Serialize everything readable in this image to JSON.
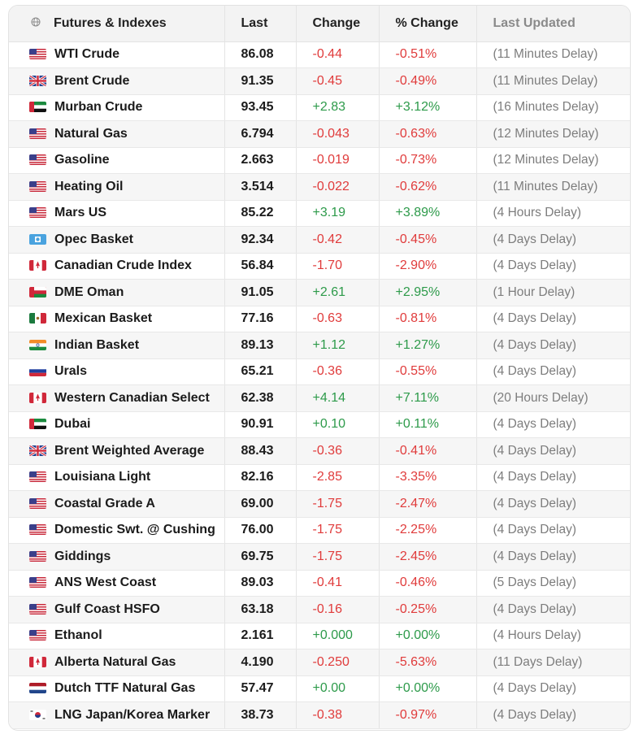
{
  "header": {
    "name": "Futures & Indexes",
    "last": "Last",
    "change": "Change",
    "pct_change": "% Change",
    "last_updated": "Last Updated"
  },
  "colors": {
    "negative": "#e03b3b",
    "positive": "#2d9a4a"
  },
  "rows": [
    {
      "name": "WTI Crude",
      "flag": "us",
      "last": "86.08",
      "change": "-0.44",
      "pct": "-0.51%",
      "updated": "(11 Minutes Delay)"
    },
    {
      "name": "Brent Crude",
      "flag": "uk",
      "last": "91.35",
      "change": "-0.45",
      "pct": "-0.49%",
      "updated": "(11 Minutes Delay)"
    },
    {
      "name": "Murban Crude",
      "flag": "ae",
      "last": "93.45",
      "change": "+2.83",
      "pct": "+3.12%",
      "updated": "(16 Minutes Delay)"
    },
    {
      "name": "Natural Gas",
      "flag": "us",
      "last": "6.794",
      "change": "-0.043",
      "pct": "-0.63%",
      "updated": "(12 Minutes Delay)"
    },
    {
      "name": "Gasoline",
      "flag": "us",
      "last": "2.663",
      "change": "-0.019",
      "pct": "-0.73%",
      "updated": "(12 Minutes Delay)"
    },
    {
      "name": "Heating Oil",
      "flag": "us",
      "last": "3.514",
      "change": "-0.022",
      "pct": "-0.62%",
      "updated": "(11 Minutes Delay)"
    },
    {
      "name": "Mars US",
      "flag": "us",
      "last": "85.22",
      "change": "+3.19",
      "pct": "+3.89%",
      "updated": "(4 Hours Delay)"
    },
    {
      "name": "Opec Basket",
      "flag": "opec",
      "last": "92.34",
      "change": "-0.42",
      "pct": "-0.45%",
      "updated": "(4 Days Delay)"
    },
    {
      "name": "Canadian Crude Index",
      "flag": "ca",
      "last": "56.84",
      "change": "-1.70",
      "pct": "-2.90%",
      "updated": "(4 Days Delay)"
    },
    {
      "name": "DME Oman",
      "flag": "om",
      "last": "91.05",
      "change": "+2.61",
      "pct": "+2.95%",
      "updated": "(1 Hour Delay)"
    },
    {
      "name": "Mexican Basket",
      "flag": "mx",
      "last": "77.16",
      "change": "-0.63",
      "pct": "-0.81%",
      "updated": "(4 Days Delay)"
    },
    {
      "name": "Indian Basket",
      "flag": "in",
      "last": "89.13",
      "change": "+1.12",
      "pct": "+1.27%",
      "updated": "(4 Days Delay)"
    },
    {
      "name": "Urals",
      "flag": "ru",
      "last": "65.21",
      "change": "-0.36",
      "pct": "-0.55%",
      "updated": "(4 Days Delay)"
    },
    {
      "name": "Western Canadian Select",
      "flag": "ca",
      "last": "62.38",
      "change": "+4.14",
      "pct": "+7.11%",
      "updated": "(20 Hours Delay)"
    },
    {
      "name": "Dubai",
      "flag": "ae",
      "last": "90.91",
      "change": "+0.10",
      "pct": "+0.11%",
      "updated": "(4 Days Delay)"
    },
    {
      "name": "Brent Weighted Average",
      "flag": "uk",
      "last": "88.43",
      "change": "-0.36",
      "pct": "-0.41%",
      "updated": "(4 Days Delay)"
    },
    {
      "name": "Louisiana Light",
      "flag": "us",
      "last": "82.16",
      "change": "-2.85",
      "pct": "-3.35%",
      "updated": "(4 Days Delay)"
    },
    {
      "name": "Coastal Grade A",
      "flag": "us",
      "last": "69.00",
      "change": "-1.75",
      "pct": "-2.47%",
      "updated": "(4 Days Delay)"
    },
    {
      "name": "Domestic Swt. @ Cushing",
      "flag": "us",
      "last": "76.00",
      "change": "-1.75",
      "pct": "-2.25%",
      "updated": "(4 Days Delay)"
    },
    {
      "name": "Giddings",
      "flag": "us",
      "last": "69.75",
      "change": "-1.75",
      "pct": "-2.45%",
      "updated": "(4 Days Delay)"
    },
    {
      "name": "ANS West Coast",
      "flag": "us",
      "last": "89.03",
      "change": "-0.41",
      "pct": "-0.46%",
      "updated": "(5 Days Delay)"
    },
    {
      "name": "Gulf Coast HSFO",
      "flag": "us",
      "last": "63.18",
      "change": "-0.16",
      "pct": "-0.25%",
      "updated": "(4 Days Delay)"
    },
    {
      "name": "Ethanol",
      "flag": "us",
      "last": "2.161",
      "change": "+0.000",
      "pct": "+0.00%",
      "updated": "(4 Hours Delay)"
    },
    {
      "name": "Alberta Natural Gas",
      "flag": "ca",
      "last": "4.190",
      "change": "-0.250",
      "pct": "-5.63%",
      "updated": "(11 Days Delay)"
    },
    {
      "name": "Dutch TTF Natural Gas",
      "flag": "nl",
      "last": "57.47",
      "change": "+0.00",
      "pct": "+0.00%",
      "updated": "(4 Days Delay)"
    },
    {
      "name": "LNG Japan/Korea Marker",
      "flag": "jpkr",
      "last": "38.73",
      "change": "-0.38",
      "pct": "-0.97%",
      "updated": "(4 Days Delay)"
    }
  ]
}
